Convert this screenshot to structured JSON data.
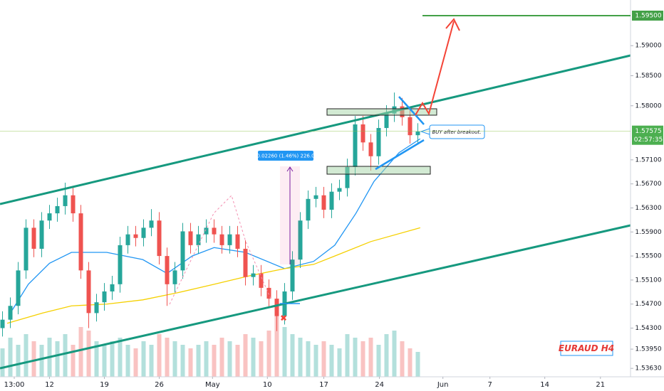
{
  "chart_data": {
    "type": "candlestick",
    "title": "EURAUD H4",
    "x": [
      -1.5,
      -0.5,
      0.5,
      1.5,
      2.5,
      3.5,
      4.5,
      5.5,
      6.5,
      7.5,
      8.5,
      9.5,
      10.5,
      11.5,
      12.5,
      13.5,
      14.5,
      15.5,
      16.5,
      17.5,
      18.5,
      19.5,
      20.5,
      21.5,
      22.5,
      23.5,
      24.5,
      25.5,
      26.5,
      27.5,
      28.5,
      29.5,
      30.5,
      31.5,
      32.5,
      33.5,
      34.5,
      35.5,
      36.5,
      37.5,
      38.5,
      39.5,
      40.5,
      41.5,
      42.5,
      43.5,
      44.5,
      45.5,
      46.5,
      47.5,
      48.5,
      49.5,
      50.5,
      51.5
    ],
    "open": [
      1.543,
      1.5444,
      1.5467,
      1.5526,
      1.5597,
      1.5562,
      1.5609,
      1.5621,
      1.5633,
      1.5651,
      1.5621,
      1.5526,
      1.5455,
      1.5473,
      1.5491,
      1.5503,
      1.5568,
      1.5586,
      1.558,
      1.5597,
      1.5609,
      1.555,
      1.5503,
      1.5526,
      1.5591,
      1.5568,
      1.5586,
      1.5597,
      1.5586,
      1.5568,
      1.5586,
      1.5562,
      1.5515,
      1.5521,
      1.5497,
      1.5479,
      1.545,
      1.5491,
      1.5544,
      1.5609,
      1.5645,
      1.5651,
      1.5627,
      1.5657,
      1.5663,
      1.5698,
      1.5769,
      1.5739,
      1.5716,
      1.5763,
      1.5787,
      1.5799,
      1.5781,
      1.5751
    ],
    "high": [
      1.5458,
      1.5481,
      1.554,
      1.5611,
      1.5611,
      1.5623,
      1.5635,
      1.5647,
      1.5672,
      1.5665,
      1.5635,
      1.554,
      1.5487,
      1.5505,
      1.5517,
      1.5582,
      1.56,
      1.56,
      1.5611,
      1.5628,
      1.5623,
      1.5564,
      1.554,
      1.5605,
      1.5605,
      1.56,
      1.5611,
      1.5611,
      1.56,
      1.56,
      1.56,
      1.5576,
      1.5535,
      1.5535,
      1.5511,
      1.5493,
      1.5505,
      1.5558,
      1.5623,
      1.5659,
      1.5665,
      1.5665,
      1.5671,
      1.5677,
      1.5712,
      1.5783,
      1.5783,
      1.5753,
      1.5777,
      1.5801,
      1.5822,
      1.5813,
      1.5795,
      1.5771
    ],
    "low": [
      1.5416,
      1.543,
      1.5453,
      1.5512,
      1.5548,
      1.5548,
      1.5595,
      1.5607,
      1.5619,
      1.5607,
      1.5512,
      1.543,
      1.5441,
      1.5459,
      1.5477,
      1.5489,
      1.5554,
      1.5566,
      1.5566,
      1.5583,
      1.5536,
      1.5467,
      1.5489,
      1.5512,
      1.5554,
      1.5554,
      1.5572,
      1.5572,
      1.5554,
      1.5554,
      1.5548,
      1.5501,
      1.5501,
      1.5483,
      1.5465,
      1.5425,
      1.5436,
      1.5477,
      1.553,
      1.5595,
      1.5631,
      1.5613,
      1.5613,
      1.5643,
      1.5649,
      1.5684,
      1.5725,
      1.5692,
      1.5702,
      1.5749,
      1.5773,
      1.5767,
      1.5737,
      1.5737
    ],
    "close": [
      1.5444,
      1.5467,
      1.5526,
      1.5597,
      1.5562,
      1.5609,
      1.5621,
      1.5633,
      1.5651,
      1.5621,
      1.5526,
      1.5455,
      1.5473,
      1.5491,
      1.5503,
      1.5568,
      1.5586,
      1.558,
      1.5597,
      1.5609,
      1.555,
      1.5503,
      1.5526,
      1.5591,
      1.5568,
      1.5586,
      1.5597,
      1.5586,
      1.5568,
      1.5586,
      1.5562,
      1.5515,
      1.5521,
      1.5497,
      1.5479,
      1.545,
      1.5491,
      1.5544,
      1.5609,
      1.5645,
      1.5651,
      1.5627,
      1.5657,
      1.5663,
      1.5698,
      1.5769,
      1.5739,
      1.5716,
      1.5763,
      1.5787,
      1.5799,
      1.5781,
      1.5751,
      1.5757
    ],
    "up_color": "#26a69a",
    "down_color": "#ef5350",
    "volume": [
      40,
      55,
      45,
      60,
      50,
      45,
      55,
      50,
      60,
      45,
      70,
      65,
      50,
      45,
      50,
      55,
      45,
      40,
      50,
      45,
      60,
      55,
      50,
      45,
      40,
      45,
      50,
      45,
      55,
      50,
      45,
      60,
      55,
      50,
      65,
      90,
      70,
      60,
      55,
      50,
      45,
      50,
      45,
      40,
      60,
      55,
      50,
      55,
      45,
      60,
      65,
      50,
      40,
      35
    ],
    "volume_lim": [
      0,
      100
    ],
    "series": [
      {
        "color": "#2196f3",
        "x": [
          -0.5,
          1.8,
          4.5,
          7.3,
          11.8,
          16.4,
          19.5,
          22.7,
          25.5,
          29.5,
          34.5,
          38.2,
          40.9,
          43.6,
          45.9,
          49.1,
          51.8
        ],
        "values": [
          1.5455,
          1.5503,
          1.5538,
          1.5556,
          1.5556,
          1.5544,
          1.5521,
          1.555,
          1.5564,
          1.5556,
          1.5529,
          1.5541,
          1.5568,
          1.5621,
          1.5674,
          1.5722,
          1.5745
        ]
      },
      {
        "color": "#f5d000",
        "x": [
          -0.9,
          3.6,
          7.3,
          11.8,
          16.4,
          20.9,
          25.5,
          30,
          34.5,
          38.2,
          40.9,
          45.5,
          51.8
        ],
        "values": [
          1.5438,
          1.5455,
          1.5467,
          1.547,
          1.5477,
          1.5489,
          1.5503,
          1.5517,
          1.5529,
          1.5536,
          1.555,
          1.5574,
          1.5597
        ]
      }
    ],
    "xlim": [
      -1.82,
      78.64
    ],
    "xticks": [
      {
        "value": 0,
        "label": "13:00"
      },
      {
        "value": 4.5,
        "label": "12"
      },
      {
        "value": 11.5,
        "label": "19"
      },
      {
        "value": 18.5,
        "label": "26"
      },
      {
        "value": 25.3,
        "label": "May"
      },
      {
        "value": 32.3,
        "label": "10"
      },
      {
        "value": 39.5,
        "label": "17"
      },
      {
        "value": 46.6,
        "label": "24"
      },
      {
        "value": 54.7,
        "label": "Jun"
      },
      {
        "value": 60.7,
        "label": "7"
      },
      {
        "value": 67.7,
        "label": "14"
      },
      {
        "value": 74.8,
        "label": "21"
      }
    ],
    "ylim": [
      1.5349,
      1.5976
    ],
    "yticks": [
      {
        "value": 1.59,
        "label": "1.59000"
      },
      {
        "value": 1.585,
        "label": "1.58500"
      },
      {
        "value": 1.58,
        "label": "1.58000"
      },
      {
        "value": 1.571,
        "label": "1.57100"
      },
      {
        "value": 1.567,
        "label": "1.56700"
      },
      {
        "value": 1.563,
        "label": "1.56300"
      },
      {
        "value": 1.559,
        "label": "1.55900"
      },
      {
        "value": 1.555,
        "label": "1.55500"
      },
      {
        "value": 1.551,
        "label": "1.55100"
      },
      {
        "value": 1.547,
        "label": "1.54700"
      },
      {
        "value": 1.543,
        "label": "1.54300"
      },
      {
        "value": 1.5395,
        "label": "1.53950"
      },
      {
        "value": 1.5363,
        "label": "1.53630"
      }
    ],
    "target": {
      "value": 1.595,
      "label": "1.59500"
    },
    "price_marker": {
      "value": 1.57575,
      "label": "1.57575",
      "countdown": "02:57:35"
    },
    "annotations": [
      "0.02260 (1.46%) 226.0",
      "BUY after breakout."
    ]
  }
}
